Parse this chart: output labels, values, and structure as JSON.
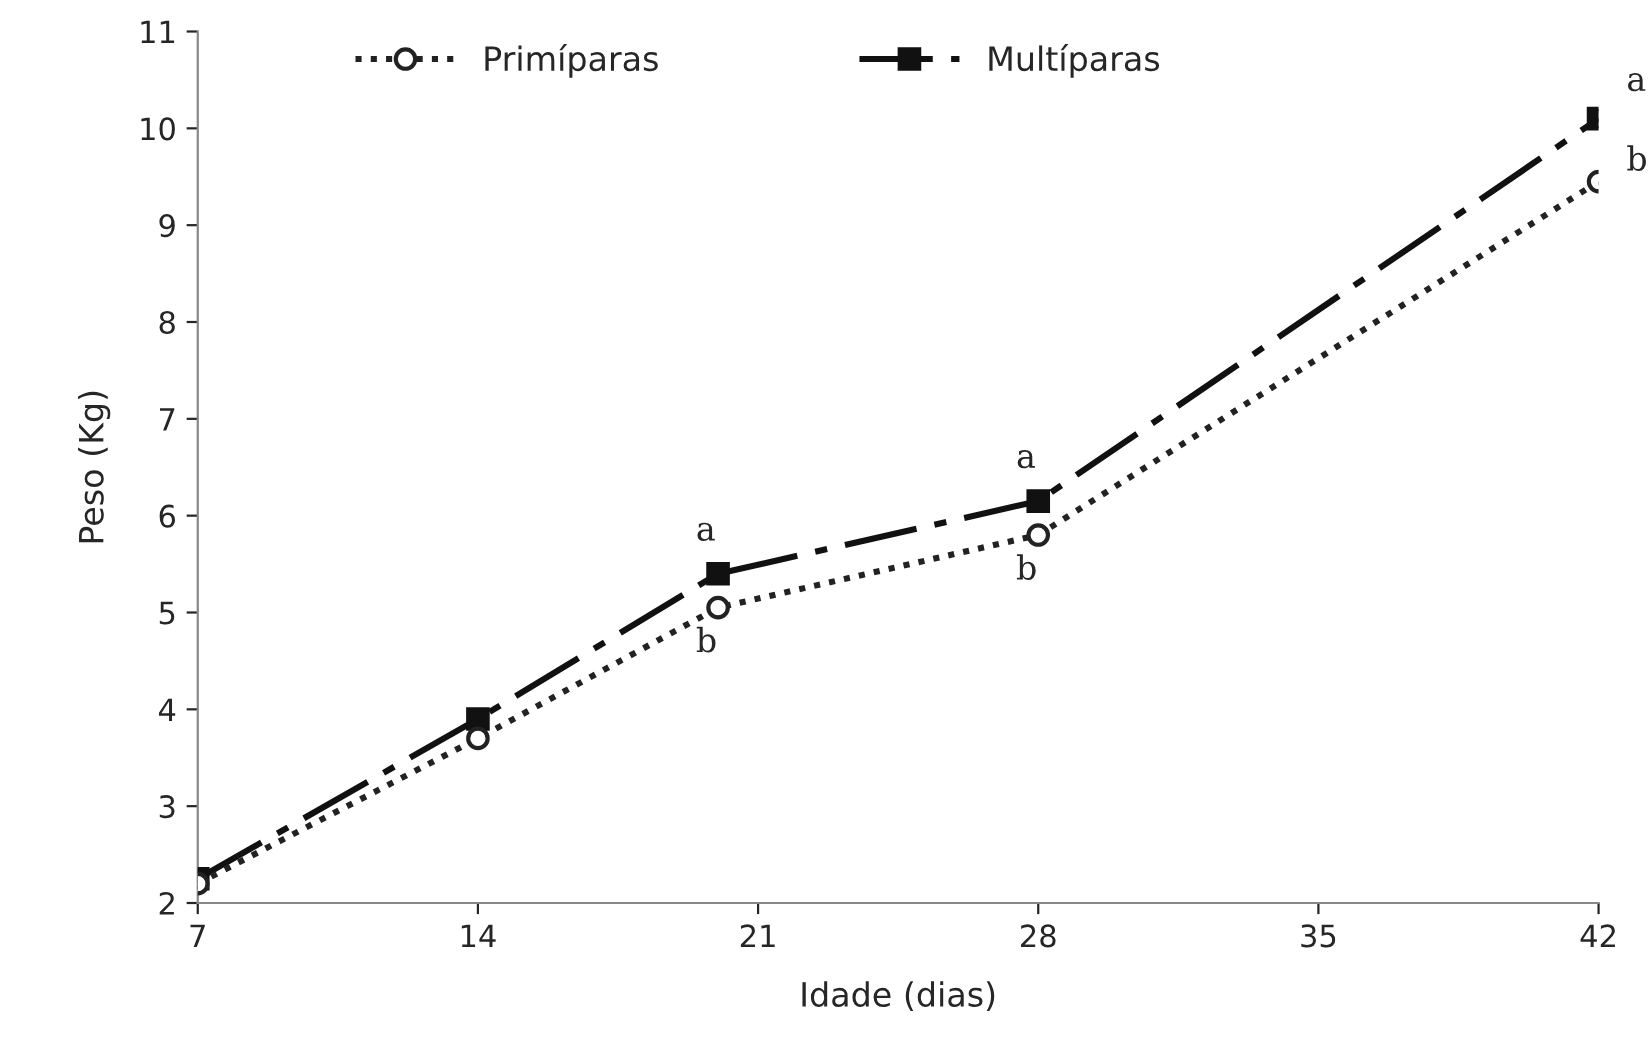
{
  "chart_data": {
    "type": "line",
    "xlabel": "Idade (dias)",
    "ylabel": "Peso (Kg)",
    "x": [
      7,
      14,
      20,
      28,
      42
    ],
    "series": [
      {
        "name": "Primíparas",
        "color": "#222222",
        "values": [
          2.2,
          3.7,
          5.05,
          5.8,
          9.45
        ],
        "marker": "circle",
        "line_style": "dotted"
      },
      {
        "name": "Multíparas",
        "color": "#111111",
        "values": [
          2.25,
          3.9,
          5.4,
          6.15,
          10.1
        ],
        "marker": "square",
        "line_style": "dashed"
      }
    ],
    "xlim": [
      7,
      42
    ],
    "xticks": [
      7,
      14,
      21,
      28,
      35,
      42
    ],
    "ylim": [
      2,
      11
    ],
    "yticks": [
      2,
      3,
      4,
      5,
      6,
      7,
      8,
      9,
      10,
      11
    ],
    "grid": false,
    "legend": "top",
    "annotations": [
      {
        "text": "a",
        "x": 20,
        "y": 5.4
      },
      {
        "text": "b",
        "x": 20,
        "y": 5.05
      },
      {
        "text": "a",
        "x": 28,
        "y": 6.15
      },
      {
        "text": "b",
        "x": 28,
        "y": 5.8
      },
      {
        "text": "a",
        "x": 42,
        "y": 10.1
      },
      {
        "text": "b",
        "x": 42,
        "y": 9.45
      }
    ]
  }
}
